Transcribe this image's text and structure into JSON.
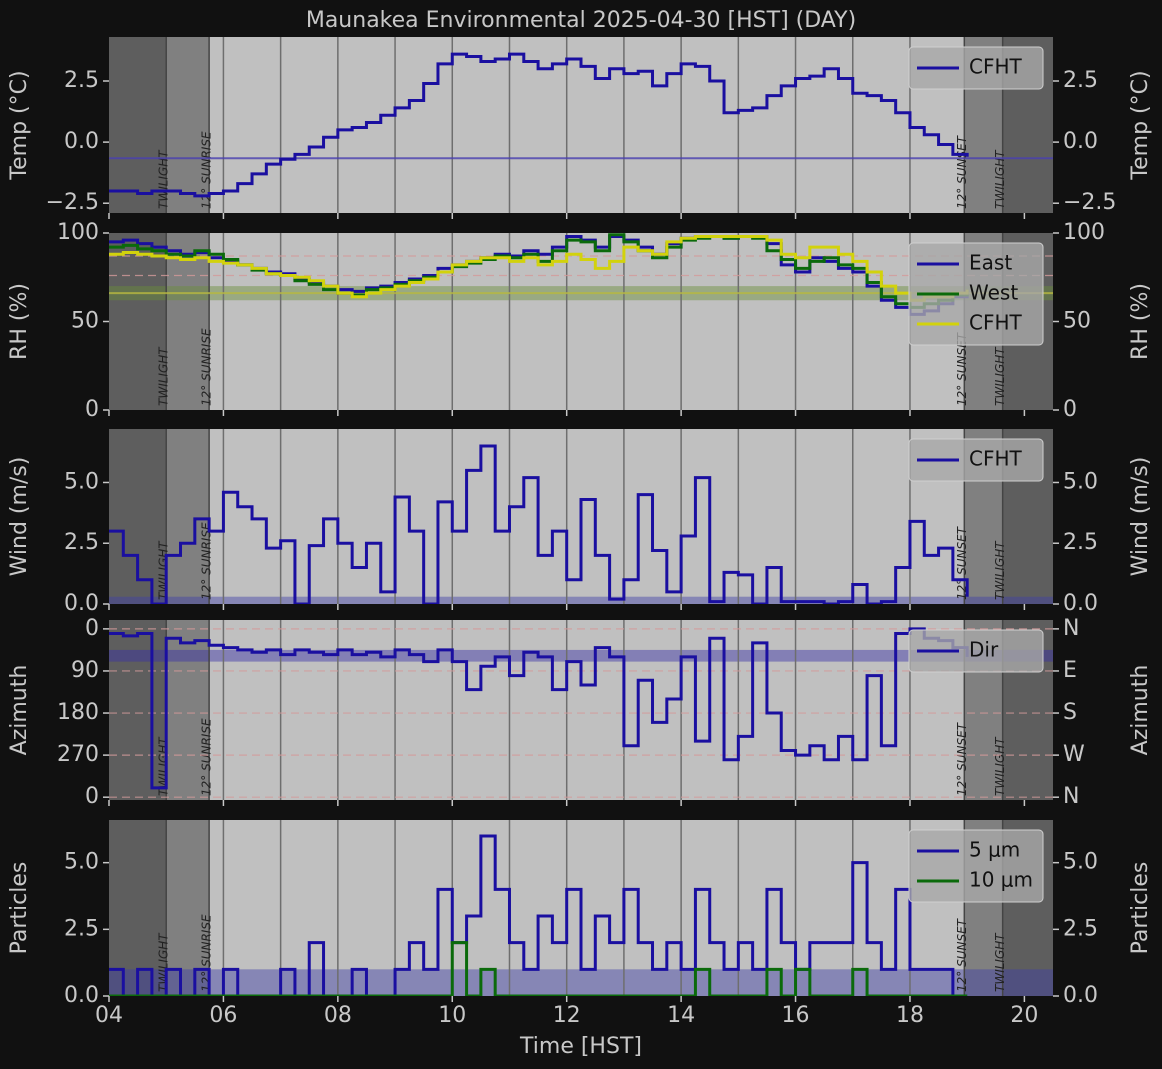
{
  "title": "Maunakea Environmental 2025-04-30 [HST] (DAY)",
  "xlabel": "Time [HST]",
  "time_axis": {
    "xlim": [
      4,
      20.5
    ],
    "xticks": [
      {
        "value": 4,
        "label": "04"
      },
      {
        "value": 6,
        "label": "06"
      },
      {
        "value": 8,
        "label": "08"
      },
      10,
      12,
      14,
      16,
      18,
      20
    ],
    "hour_lines": [
      6,
      7,
      8,
      9,
      10,
      11,
      12,
      13,
      14,
      15,
      16,
      17,
      18
    ],
    "sun_events": [
      {
        "time": 5.0,
        "label": "TWILIGHT"
      },
      {
        "time": 5.75,
        "label": "12° SUNRISE"
      },
      {
        "time": 18.95,
        "label": "12° SUNSET"
      },
      {
        "time": 19.62,
        "label": "TWILIGHT"
      }
    ],
    "shade_colors": [
      "#5e5e5e",
      "#808080",
      "#c0c0c0",
      "#808080",
      "#5e5e5e"
    ]
  },
  "chart_data": [
    {
      "type": "line",
      "drawstyle": "steps-post",
      "ylabel": "Temp (°C)",
      "ylim": [
        -2.9,
        4.3
      ],
      "yticks": [
        {
          "value": -2.5,
          "label": "−2.5"
        },
        {
          "value": 0,
          "label": "0.0"
        },
        2.5
      ],
      "legend": "upper right",
      "hlines": [
        {
          "value": -0.66,
          "color": "#4a40b0",
          "dashed": false
        }
      ],
      "x": [
        4,
        4.25,
        4.5,
        4.75,
        5,
        5.25,
        5.5,
        5.75,
        6,
        6.25,
        6.5,
        6.75,
        7,
        7.25,
        7.5,
        7.75,
        8,
        8.25,
        8.5,
        8.75,
        9,
        9.25,
        9.5,
        9.75,
        10,
        10.25,
        10.5,
        10.75,
        11,
        11.25,
        11.5,
        11.75,
        12,
        12.25,
        12.5,
        12.75,
        13,
        13.25,
        13.5,
        13.75,
        14,
        14.25,
        14.5,
        14.75,
        15,
        15.25,
        15.5,
        15.75,
        16,
        16.25,
        16.5,
        16.75,
        17,
        17.25,
        17.5,
        17.75,
        18,
        18.25,
        18.5,
        18.75,
        19
      ],
      "series": [
        {
          "name": "CFHT",
          "color": "#1a0fa0",
          "values": [
            -2.0,
            -2.0,
            -2.1,
            -2.0,
            -2.0,
            -2.1,
            -2.2,
            -2.1,
            -2.0,
            -1.7,
            -1.3,
            -0.9,
            -0.7,
            -0.5,
            -0.2,
            0.2,
            0.5,
            0.6,
            0.8,
            1.1,
            1.4,
            1.7,
            2.4,
            3.2,
            3.6,
            3.5,
            3.3,
            3.4,
            3.6,
            3.3,
            3.0,
            3.2,
            3.4,
            3.1,
            2.6,
            3.0,
            2.8,
            2.9,
            2.3,
            2.8,
            3.2,
            3.1,
            2.5,
            1.2,
            1.3,
            1.4,
            1.9,
            2.3,
            2.6,
            2.7,
            3.0,
            2.6,
            2.0,
            1.9,
            1.7,
            1.2,
            0.6,
            0.3,
            -0.1,
            -0.5,
            -0.6
          ]
        }
      ]
    },
    {
      "type": "line",
      "drawstyle": "steps-post",
      "ylabel": "RH (%)",
      "ylim": [
        0,
        100
      ],
      "yticks": [
        0,
        50,
        100
      ],
      "legend": "upper right",
      "bands": [
        {
          "from": 62,
          "to": 70,
          "color": "#6b8f3a"
        }
      ],
      "hlines": [
        {
          "value": 87,
          "color": "#d49a9a",
          "dashed": true
        },
        {
          "value": 76,
          "color": "#d49a9a",
          "dashed": true
        },
        {
          "value": 66,
          "color": "#b8b840",
          "dashed": false
        }
      ],
      "x": [
        4,
        4.25,
        4.5,
        4.75,
        5,
        5.25,
        5.5,
        5.75,
        6,
        6.25,
        6.5,
        6.75,
        7,
        7.25,
        7.5,
        7.75,
        8,
        8.25,
        8.5,
        8.75,
        9,
        9.25,
        9.5,
        9.75,
        10,
        10.25,
        10.5,
        10.75,
        11,
        11.25,
        11.5,
        11.75,
        12,
        12.25,
        12.5,
        12.75,
        13,
        13.25,
        13.5,
        13.75,
        14,
        14.25,
        14.5,
        14.75,
        15,
        15.25,
        15.5,
        15.75,
        16,
        16.25,
        16.5,
        16.75,
        17,
        17.25,
        17.5,
        17.75,
        18,
        18.25,
        18.5,
        18.75,
        19
      ],
      "series": [
        {
          "name": "East",
          "color": "#1a0fa0",
          "values": [
            95,
            96,
            94,
            92,
            90,
            88,
            89,
            86,
            84,
            82,
            80,
            78,
            77,
            74,
            72,
            70,
            68,
            67,
            69,
            70,
            72,
            74,
            76,
            80,
            82,
            84,
            86,
            88,
            87,
            90,
            88,
            92,
            98,
            96,
            92,
            98,
            96,
            92,
            88,
            94,
            97,
            98,
            98,
            97,
            98,
            98,
            94,
            82,
            78,
            86,
            84,
            80,
            78,
            70,
            62,
            58,
            54,
            56,
            60,
            64,
            66
          ]
        },
        {
          "name": "West",
          "color": "#0b6a0b",
          "values": [
            92,
            93,
            91,
            90,
            88,
            87,
            90,
            88,
            85,
            82,
            79,
            77,
            76,
            73,
            71,
            68,
            66,
            65,
            68,
            69,
            71,
            73,
            75,
            78,
            81,
            83,
            85,
            87,
            86,
            88,
            84,
            90,
            96,
            95,
            90,
            99,
            95,
            90,
            86,
            92,
            96,
            97,
            98,
            97,
            98,
            97,
            90,
            85,
            80,
            84,
            86,
            82,
            80,
            72,
            64,
            60,
            58,
            60,
            62,
            65,
            68
          ]
        },
        {
          "name": "CFHT",
          "color": "#d2d20c",
          "values": [
            88,
            89,
            88,
            87,
            86,
            85,
            86,
            84,
            83,
            82,
            80,
            77,
            76,
            75,
            73,
            70,
            66,
            64,
            66,
            68,
            70,
            72,
            74,
            78,
            82,
            84,
            86,
            86,
            84,
            86,
            82,
            84,
            88,
            85,
            80,
            84,
            92,
            90,
            88,
            95,
            97,
            98,
            98,
            98,
            98,
            98,
            96,
            88,
            86,
            92,
            92,
            88,
            84,
            78,
            70,
            66,
            62,
            64,
            64,
            66,
            68
          ]
        }
      ]
    },
    {
      "type": "line",
      "drawstyle": "steps-post",
      "ylabel": "Wind (m/s)",
      "ylim": [
        0,
        7.2
      ],
      "yticks": [
        {
          "value": 0,
          "label": "0.0"
        },
        2.5,
        {
          "value": 5,
          "label": "5.0"
        }
      ],
      "legend": "upper right",
      "bands": [
        {
          "from": 0,
          "to": 0.3,
          "color": "#4040a8"
        }
      ],
      "x": [
        4,
        4.25,
        4.5,
        4.75,
        5,
        5.25,
        5.5,
        5.75,
        6,
        6.25,
        6.5,
        6.75,
        7,
        7.25,
        7.5,
        7.75,
        8,
        8.25,
        8.5,
        8.75,
        9,
        9.25,
        9.5,
        9.75,
        10,
        10.25,
        10.5,
        10.75,
        11,
        11.25,
        11.5,
        11.75,
        12,
        12.25,
        12.5,
        12.75,
        13,
        13.25,
        13.5,
        13.75,
        14,
        14.25,
        14.5,
        14.75,
        15,
        15.25,
        15.5,
        15.75,
        16,
        16.25,
        16.5,
        16.75,
        17,
        17.25,
        17.5,
        17.75,
        18,
        18.25,
        18.5,
        18.75,
        19
      ],
      "series": [
        {
          "name": "CFHT",
          "color": "#1a0fa0",
          "values": [
            3.0,
            2.0,
            1.0,
            0.0,
            2.0,
            2.5,
            3.5,
            3.0,
            4.6,
            4.0,
            3.5,
            2.3,
            2.6,
            0.0,
            2.4,
            3.5,
            2.5,
            1.5,
            2.5,
            0.5,
            4.4,
            3.0,
            0.0,
            4.2,
            3.0,
            5.5,
            6.5,
            3.0,
            4.0,
            5.2,
            2.0,
            3.0,
            1.0,
            4.3,
            2.0,
            0.2,
            1.0,
            4.5,
            2.2,
            0.5,
            2.8,
            5.2,
            0.1,
            1.3,
            1.2,
            0.0,
            1.5,
            0.1,
            0.1,
            0.1,
            0.0,
            0.1,
            0.8,
            0.0,
            0.1,
            1.5,
            3.4,
            2.0,
            2.3,
            1.0,
            0.3
          ]
        }
      ]
    },
    {
      "type": "line",
      "drawstyle": "steps-post",
      "ylabel": "Azimuth",
      "ylim": [
        366,
        -19
      ],
      "yticks": [
        0,
        90,
        180,
        270,
        {
          "value": 360,
          "label": "0"
        }
      ],
      "y2ticks": [
        {
          "value": 0,
          "label": "N"
        },
        {
          "value": 90,
          "label": "E"
        },
        {
          "value": 180,
          "label": "S"
        },
        {
          "value": 270,
          "label": "W"
        },
        {
          "value": 360,
          "label": "N"
        }
      ],
      "legend": "upper right",
      "bands": [
        {
          "from": 45,
          "to": 70,
          "color": "#3a30a8"
        }
      ],
      "hlines": [
        {
          "value": 0,
          "color": "#d49a9a",
          "dashed": true
        },
        {
          "value": 90,
          "color": "#d49a9a",
          "dashed": true
        },
        {
          "value": 180,
          "color": "#d49a9a",
          "dashed": true
        },
        {
          "value": 270,
          "color": "#d49a9a",
          "dashed": true
        },
        {
          "value": 360,
          "color": "#d49a9a",
          "dashed": true
        }
      ],
      "x": [
        4,
        4.25,
        4.5,
        4.75,
        5,
        5.25,
        5.5,
        5.75,
        6,
        6.25,
        6.5,
        6.75,
        7,
        7.25,
        7.5,
        7.75,
        8,
        8.25,
        8.5,
        8.75,
        9,
        9.25,
        9.5,
        9.75,
        10,
        10.25,
        10.5,
        10.75,
        11,
        11.25,
        11.5,
        11.75,
        12,
        12.25,
        12.5,
        12.75,
        13,
        13.25,
        13.5,
        13.75,
        14,
        14.25,
        14.5,
        14.75,
        15,
        15.25,
        15.5,
        15.75,
        16,
        16.25,
        16.5,
        16.75,
        17,
        17.25,
        17.5,
        17.75,
        18,
        18.25,
        18.5,
        18.75,
        19
      ],
      "series": [
        {
          "name": "Dir",
          "color": "#1a0fa0",
          "values": [
            10,
            15,
            10,
            340,
            20,
            30,
            25,
            35,
            40,
            45,
            50,
            45,
            55,
            45,
            50,
            55,
            45,
            55,
            50,
            60,
            45,
            55,
            70,
            45,
            70,
            130,
            80,
            60,
            100,
            50,
            60,
            130,
            70,
            120,
            40,
            60,
            250,
            110,
            200,
            150,
            60,
            240,
            20,
            280,
            230,
            30,
            180,
            260,
            270,
            250,
            280,
            230,
            280,
            100,
            250,
            10,
            0,
            20,
            25,
            40,
            60
          ]
        }
      ]
    },
    {
      "type": "line",
      "drawstyle": "steps-post",
      "ylabel": "Particles",
      "ylim": [
        0,
        6.6
      ],
      "yticks": [
        {
          "value": 0,
          "label": "0.0"
        },
        2.5,
        {
          "value": 5,
          "label": "5.0"
        }
      ],
      "legend": "upper right",
      "bands": [
        {
          "from": 0,
          "to": 1,
          "color": "#4040a8"
        }
      ],
      "x": [
        4,
        4.25,
        4.5,
        4.75,
        5,
        5.25,
        5.5,
        5.75,
        6,
        6.25,
        6.5,
        6.75,
        7,
        7.25,
        7.5,
        7.75,
        8,
        8.25,
        8.5,
        8.75,
        9,
        9.25,
        9.5,
        9.75,
        10,
        10.25,
        10.5,
        10.75,
        11,
        11.25,
        11.5,
        11.75,
        12,
        12.25,
        12.5,
        12.75,
        13,
        13.25,
        13.5,
        13.75,
        14,
        14.25,
        14.5,
        14.75,
        15,
        15.25,
        15.5,
        15.75,
        16,
        16.25,
        16.5,
        16.75,
        17,
        17.25,
        17.5,
        17.75,
        18,
        18.25,
        18.5,
        18.75,
        19
      ],
      "series": [
        {
          "name": "5 μm",
          "color": "#1a0fa0",
          "values": [
            1,
            0,
            1,
            0,
            1,
            0,
            1,
            0,
            1,
            0,
            0,
            0,
            1,
            0,
            2,
            0,
            0,
            1,
            0,
            0,
            1,
            2,
            1,
            4,
            2,
            3,
            6,
            4,
            2,
            1,
            3,
            2,
            4,
            1,
            3,
            2,
            4,
            2,
            1,
            2,
            1,
            4,
            2,
            1,
            2,
            1,
            4,
            2,
            1,
            2,
            2,
            2,
            5,
            2,
            1,
            4,
            1,
            1,
            1,
            0,
            0
          ]
        },
        {
          "name": "10 μm",
          "color": "#0b6a0b",
          "values": [
            0,
            0,
            0,
            0,
            0,
            0,
            0,
            0,
            0,
            0,
            0,
            0,
            0,
            0,
            0,
            0,
            0,
            0,
            0,
            0,
            0,
            0,
            0,
            0,
            2,
            0,
            1,
            0,
            0,
            0,
            0,
            0,
            0,
            0,
            0,
            0,
            0,
            0,
            0,
            0,
            0,
            1,
            0,
            0,
            0,
            0,
            1,
            0,
            1,
            0,
            0,
            0,
            1,
            0,
            0,
            0,
            0,
            0,
            0,
            0,
            0
          ]
        }
      ]
    }
  ]
}
